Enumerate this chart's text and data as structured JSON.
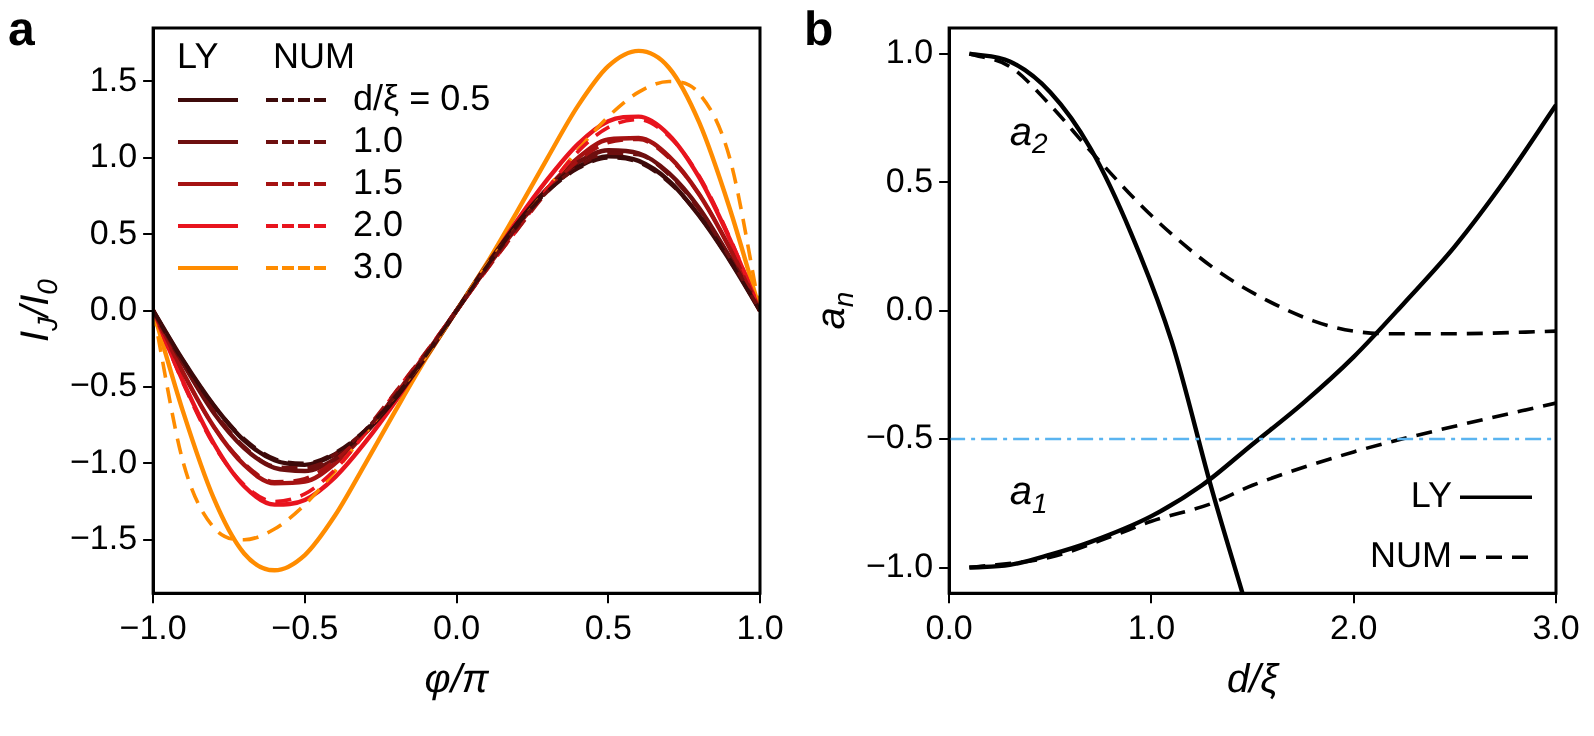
{
  "chart_data": [
    {
      "type": "line",
      "title": "a",
      "xlabel": "φ/π",
      "ylabel": "I$_{J}$/I$_{0}$",
      "legend": "top left",
      "legend_title": "LY NUM",
      "grid": false,
      "x": [
        -1,
        -0.9,
        -0.8,
        -0.7,
        -0.6,
        -0.5,
        -0.4,
        -0.3,
        -0.2,
        -0.1,
        0,
        0.1,
        0.2,
        0.3,
        0.4,
        0.5,
        0.6,
        0.7,
        0.8,
        0.9,
        1
      ],
      "xlim": [
        -1,
        1
      ],
      "xticks": [
        {
          "value": -1,
          "label": "−1.0"
        },
        {
          "value": -0.5,
          "label": "−0.5"
        },
        {
          "value": 0,
          "label": "0.0"
        },
        {
          "value": 0.5,
          "label": "0.5"
        },
        {
          "value": 1,
          "label": "1.0"
        }
      ],
      "ylim": [
        -1.85,
        1.85
      ],
      "yticks": [
        {
          "value": -1.5,
          "label": "−1.5"
        },
        {
          "value": -1,
          "label": "−1.0"
        },
        {
          "value": -0.5,
          "label": "−0.5"
        },
        {
          "value": 0,
          "label": "0.0"
        },
        {
          "value": 0.5,
          "label": "0.5"
        },
        {
          "value": 1,
          "label": "1.0"
        },
        {
          "value": 1.5,
          "label": "1.5"
        }
      ],
      "series": [
        {
          "name": "d/ξ = 0.5",
          "color": "#3d0a0a",
          "line_style": "solid",
          "values": [
            0,
            -0.33,
            -0.62,
            -0.85,
            -0.98,
            -1.01,
            -0.94,
            -0.79,
            -0.57,
            -0.29,
            0,
            0.29,
            0.57,
            0.79,
            0.94,
            1.01,
            0.98,
            0.85,
            0.62,
            0.33,
            0
          ]
        },
        {
          "color": "#3d0a0a",
          "line_style": "dashed",
          "values": [
            0,
            -0.33,
            -0.62,
            -0.84,
            -0.97,
            -1.0,
            -0.93,
            -0.78,
            -0.56,
            -0.29,
            0,
            0.29,
            0.56,
            0.78,
            0.93,
            1.0,
            0.97,
            0.84,
            0.62,
            0.33,
            0
          ]
        },
        {
          "name": "1.0",
          "color": "#6e0f0f",
          "line_style": "solid",
          "values": [
            0,
            -0.35,
            -0.67,
            -0.9,
            -1.03,
            -1.05,
            -0.97,
            -0.8,
            -0.57,
            -0.3,
            0,
            0.3,
            0.57,
            0.8,
            0.97,
            1.05,
            1.03,
            0.9,
            0.67,
            0.35,
            0
          ]
        },
        {
          "color": "#6e0f0f",
          "line_style": "dashed",
          "values": [
            0,
            -0.35,
            -0.66,
            -0.89,
            -1.02,
            -1.03,
            -0.94,
            -0.78,
            -0.55,
            -0.28,
            0,
            0.28,
            0.55,
            0.78,
            0.94,
            1.03,
            1.02,
            0.89,
            0.66,
            0.35,
            0
          ]
        },
        {
          "name": "1.5",
          "color": "#a51212",
          "line_style": "solid",
          "values": [
            0,
            -0.41,
            -0.76,
            -1.01,
            -1.13,
            -1.12,
            -1.0,
            -0.8,
            -0.55,
            -0.28,
            0,
            0.28,
            0.55,
            0.8,
            1.0,
            1.12,
            1.13,
            1.01,
            0.76,
            0.41,
            0
          ]
        },
        {
          "color": "#a51212",
          "line_style": "dashed",
          "values": [
            0,
            -0.41,
            -0.76,
            -1.0,
            -1.12,
            -1.1,
            -0.98,
            -0.78,
            -0.53,
            -0.27,
            0,
            0.27,
            0.53,
            0.78,
            0.98,
            1.1,
            1.12,
            1.0,
            0.76,
            0.41,
            0
          ]
        },
        {
          "name": "2.0",
          "color": "#e8141e",
          "line_style": "solid",
          "values": [
            0,
            -0.47,
            -0.87,
            -1.15,
            -1.27,
            -1.24,
            -1.09,
            -0.86,
            -0.59,
            -0.29,
            0,
            0.29,
            0.59,
            0.86,
            1.09,
            1.24,
            1.27,
            1.15,
            0.87,
            0.47,
            0
          ]
        },
        {
          "color": "#e8141e",
          "line_style": "dashed",
          "values": [
            0,
            -0.48,
            -0.88,
            -1.14,
            -1.25,
            -1.2,
            -1.04,
            -0.8,
            -0.53,
            -0.27,
            0,
            0.27,
            0.53,
            0.8,
            1.04,
            1.2,
            1.25,
            1.14,
            0.88,
            0.48,
            0
          ]
        },
        {
          "name": "3.0",
          "color": "#ff8c00",
          "line_style": "solid",
          "values": [
            0,
            -0.67,
            -1.23,
            -1.59,
            -1.7,
            -1.6,
            -1.34,
            -1.0,
            -0.65,
            -0.31,
            0,
            0.31,
            0.65,
            1.0,
            1.34,
            1.6,
            1.7,
            1.59,
            1.23,
            0.67,
            0
          ]
        },
        {
          "color": "#ff8c00",
          "line_style": "dashed",
          "values": [
            0,
            -1.0,
            -1.42,
            -1.5,
            -1.43,
            -1.27,
            -1.05,
            -0.8,
            -0.55,
            -0.3,
            0,
            0.3,
            0.55,
            0.8,
            1.05,
            1.27,
            1.43,
            1.5,
            1.42,
            1.0,
            0
          ]
        }
      ]
    },
    {
      "type": "line",
      "title": "b",
      "xlabel": "d/ξ",
      "ylabel": "a$_{n}$",
      "legend": "bottom right",
      "grid": false,
      "xlim": [
        0,
        3
      ],
      "xticks": [
        {
          "value": 0,
          "label": "0.0"
        },
        {
          "value": 1,
          "label": "1.0"
        },
        {
          "value": 2,
          "label": "2.0"
        },
        {
          "value": 3,
          "label": "3.0"
        }
      ],
      "ylim": [
        -1.1,
        1.1
      ],
      "yticks": [
        {
          "value": -1,
          "label": "−1.0"
        },
        {
          "value": -0.5,
          "label": "−0.5"
        },
        {
          "value": 0,
          "label": "0.0"
        },
        {
          "value": 0.5,
          "label": "0.5"
        },
        {
          "value": 1,
          "label": "1.0"
        }
      ],
      "ref_lines": [
        {
          "axis": "y",
          "value": -0.5,
          "color": "#5ab4f0"
        }
      ],
      "annotations": [
        {
          "text": "a$_{2}$",
          "x": 0.3,
          "y": 0.97
        },
        {
          "text": "a$_{1}$",
          "x": 0.3,
          "y": -0.99
        }
      ],
      "series": [
        {
          "name": "LY",
          "color": "#000000",
          "line_style": "solid",
          "x": [
            0.1,
            0.3,
            0.5,
            0.7,
            1.0,
            1.25,
            1.5,
            1.75,
            2.0,
            2.25,
            2.5,
            2.75,
            3.0
          ],
          "values": [
            -1.0,
            -0.99,
            -0.95,
            -0.9,
            -0.8,
            -0.68,
            -0.52,
            -0.36,
            -0.18,
            0.03,
            0.25,
            0.51,
            0.8
          ]
        },
        {
          "name": "NUM",
          "color": "#000000",
          "line_style": "dashed",
          "x": [
            0.1,
            0.5,
            0.8,
            1.0,
            1.3,
            1.5,
            2.0,
            2.5,
            3.0
          ],
          "values": [
            -1.0,
            -0.96,
            -0.88,
            -0.82,
            -0.75,
            -0.68,
            -0.55,
            -0.45,
            -0.36
          ]
        },
        {
          "color": "#000000",
          "line_style": "solid",
          "x": [
            0.1,
            0.3,
            0.5,
            0.7,
            0.9,
            1.1,
            1.3,
            1.45
          ],
          "values": [
            1.0,
            0.97,
            0.85,
            0.63,
            0.3,
            -0.12,
            -0.7,
            -1.1
          ]
        },
        {
          "color": "#000000",
          "line_style": "dashed",
          "x": [
            0.1,
            0.3,
            0.5,
            0.7,
            1.0,
            1.3,
            1.5,
            1.8,
            2.0,
            2.2,
            2.5,
            3.0
          ],
          "values": [
            1.0,
            0.95,
            0.8,
            0.62,
            0.37,
            0.17,
            0.07,
            -0.04,
            -0.08,
            -0.09,
            -0.09,
            -0.08
          ]
        }
      ]
    }
  ]
}
